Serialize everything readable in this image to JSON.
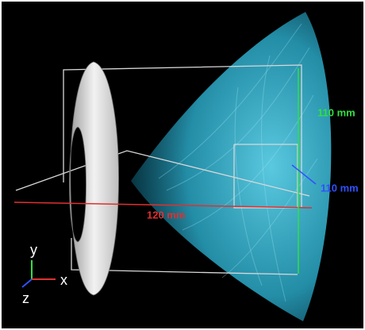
{
  "labels": {
    "height": "110 mm",
    "depth": "110 mm",
    "width": "120 mm"
  },
  "axes": {
    "y": "y",
    "x": "x",
    "z": "z"
  }
}
